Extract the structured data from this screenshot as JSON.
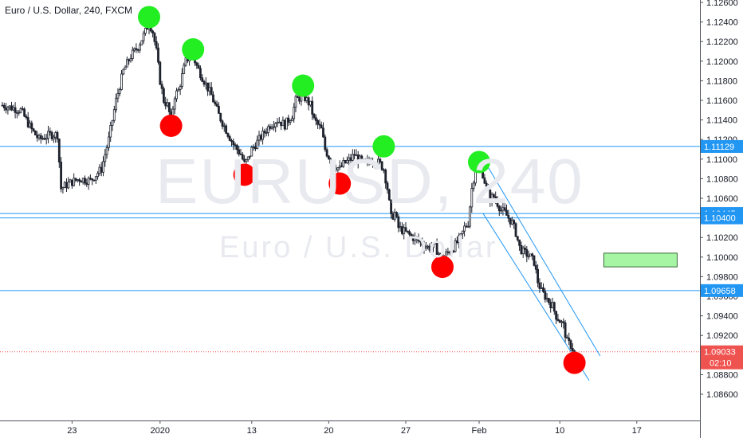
{
  "header": {
    "title": "Euro / U.S. Dollar, 240, FXCM"
  },
  "watermark": {
    "symbol": "EURUSD, 240",
    "description": "Euro / U.S. Dollar"
  },
  "colors": {
    "up": "#26a69a",
    "down": "#ef5350",
    "candle": "#1e222d",
    "line": "#2196f3",
    "support_label": "#2196f3",
    "last_price": "#ef5350",
    "green_marker": "#22ee22",
    "red_marker": "#ff0000",
    "box_fill": "#a5f5a5",
    "box_border": "#3a6a3a"
  },
  "chart_data": {
    "type": "candlestick",
    "title": "Euro / U.S. Dollar, 240, FXCM",
    "xlabel": "",
    "ylabel": "",
    "ylim": [
      1.0855,
      1.1275
    ],
    "y_ticks": [
      "1.12600",
      "1.12400",
      "1.12200",
      "1.12000",
      "1.11800",
      "1.11600",
      "1.11400",
      "1.11200",
      "1.11000",
      "1.10800",
      "1.10600",
      "1.10400",
      "1.10200",
      "1.10000",
      "1.09800",
      "1.09600",
      "1.09400",
      "1.09200",
      "1.09000",
      "1.08800",
      "1.08600"
    ],
    "x_ticks": [
      {
        "label": "23",
        "t": 19
      },
      {
        "label": "2020",
        "t": 43
      },
      {
        "label": "13",
        "t": 68
      },
      {
        "label": "20",
        "t": 89
      },
      {
        "label": "27",
        "t": 110
      },
      {
        "label": "Feb",
        "t": 130
      },
      {
        "label": "10",
        "t": 152
      },
      {
        "label": "17",
        "t": 173
      }
    ],
    "x_range": [
      0,
      202
    ],
    "horizontal_lines": [
      {
        "price": 1.11129,
        "label": "1.11129"
      },
      {
        "price": 1.10445,
        "label": "1.10445"
      },
      {
        "price": 1.104,
        "label": "1.10400"
      },
      {
        "price": 1.09658,
        "label": "1.09658"
      }
    ],
    "last_price": {
      "price": 1.09033,
      "label": "1.09033",
      "countdown": "02:10"
    },
    "channel": {
      "upper": [
        {
          "t": 131,
          "p": 1.1101
        },
        {
          "t": 163,
          "p": 1.0899
        }
      ],
      "lower": [
        {
          "t": 131,
          "p": 1.1045
        },
        {
          "t": 160,
          "p": 1.0874
        }
      ]
    },
    "target_box": {
      "t1": 164,
      "t2": 184,
      "p_top": 1.1004,
      "p_bottom": 1.099
    },
    "swing_highs": [
      {
        "t": 40,
        "p": 1.1245
      },
      {
        "t": 52,
        "p": 1.1212
      },
      {
        "t": 82,
        "p": 1.1175
      },
      {
        "t": 104,
        "p": 1.1113
      },
      {
        "t": 130,
        "p": 1.1097
      }
    ],
    "swing_lows": [
      {
        "t": 46,
        "p": 1.1134
      },
      {
        "t": 66,
        "p": 1.1084
      },
      {
        "t": 92,
        "p": 1.1075
      },
      {
        "t": 120,
        "p": 1.099
      },
      {
        "t": 156,
        "p": 1.0892
      }
    ],
    "close_path": [
      {
        "t": 0,
        "p": 1.1155
      },
      {
        "t": 3,
        "p": 1.1152
      },
      {
        "t": 5,
        "p": 1.115
      },
      {
        "t": 8,
        "p": 1.113
      },
      {
        "t": 10,
        "p": 1.112
      },
      {
        "t": 13,
        "p": 1.1125
      },
      {
        "t": 15,
        "p": 1.1125
      },
      {
        "t": 16,
        "p": 1.107
      },
      {
        "t": 18,
        "p": 1.1075
      },
      {
        "t": 21,
        "p": 1.108
      },
      {
        "t": 24,
        "p": 1.1078
      },
      {
        "t": 27,
        "p": 1.109
      },
      {
        "t": 29,
        "p": 1.112
      },
      {
        "t": 31,
        "p": 1.116
      },
      {
        "t": 33,
        "p": 1.119
      },
      {
        "t": 35,
        "p": 1.1205
      },
      {
        "t": 37,
        "p": 1.1215
      },
      {
        "t": 39,
        "p": 1.123
      },
      {
        "t": 40,
        "p": 1.124
      },
      {
        "t": 41,
        "p": 1.123
      },
      {
        "t": 42,
        "p": 1.121
      },
      {
        "t": 43,
        "p": 1.118
      },
      {
        "t": 44,
        "p": 1.116
      },
      {
        "t": 45,
        "p": 1.1155
      },
      {
        "t": 46,
        "p": 1.114
      },
      {
        "t": 47,
        "p": 1.1165
      },
      {
        "t": 48,
        "p": 1.117
      },
      {
        "t": 49,
        "p": 1.1185
      },
      {
        "t": 50,
        "p": 1.12
      },
      {
        "t": 51,
        "p": 1.1205
      },
      {
        "t": 52,
        "p": 1.1205
      },
      {
        "t": 53,
        "p": 1.1195
      },
      {
        "t": 55,
        "p": 1.118
      },
      {
        "t": 57,
        "p": 1.1165
      },
      {
        "t": 59,
        "p": 1.1145
      },
      {
        "t": 61,
        "p": 1.113
      },
      {
        "t": 63,
        "p": 1.1115
      },
      {
        "t": 65,
        "p": 1.1105
      },
      {
        "t": 66,
        "p": 1.1095
      },
      {
        "t": 67,
        "p": 1.11
      },
      {
        "t": 68,
        "p": 1.111
      },
      {
        "t": 69,
        "p": 1.1115
      },
      {
        "t": 71,
        "p": 1.1125
      },
      {
        "t": 73,
        "p": 1.1135
      },
      {
        "t": 75,
        "p": 1.114
      },
      {
        "t": 77,
        "p": 1.1135
      },
      {
        "t": 79,
        "p": 1.1145
      },
      {
        "t": 80,
        "p": 1.116
      },
      {
        "t": 82,
        "p": 1.1165
      },
      {
        "t": 84,
        "p": 1.1155
      },
      {
        "t": 85,
        "p": 1.114
      },
      {
        "t": 87,
        "p": 1.113
      },
      {
        "t": 88,
        "p": 1.111
      },
      {
        "t": 90,
        "p": 1.1095
      },
      {
        "t": 92,
        "p": 1.109
      },
      {
        "t": 93,
        "p": 1.1095
      },
      {
        "t": 95,
        "p": 1.11
      },
      {
        "t": 96,
        "p": 1.1105
      },
      {
        "t": 97,
        "p": 1.11
      },
      {
        "t": 99,
        "p": 1.1095
      },
      {
        "t": 101,
        "p": 1.11
      },
      {
        "t": 103,
        "p": 1.1095
      },
      {
        "t": 104,
        "p": 1.109
      },
      {
        "t": 105,
        "p": 1.107
      },
      {
        "t": 106,
        "p": 1.104
      },
      {
        "t": 107,
        "p": 1.1045
      },
      {
        "t": 108,
        "p": 1.103
      },
      {
        "t": 110,
        "p": 1.1025
      },
      {
        "t": 112,
        "p": 1.102
      },
      {
        "t": 114,
        "p": 1.1015
      },
      {
        "t": 116,
        "p": 1.101
      },
      {
        "t": 118,
        "p": 1.101
      },
      {
        "t": 120,
        "p": 1.0998
      },
      {
        "t": 121,
        "p": 1.1003
      },
      {
        "t": 123,
        "p": 1.101
      },
      {
        "t": 125,
        "p": 1.102
      },
      {
        "t": 126,
        "p": 1.103
      },
      {
        "t": 127,
        "p": 1.1035
      },
      {
        "t": 128,
        "p": 1.107
      },
      {
        "t": 129,
        "p": 1.109
      },
      {
        "t": 130,
        "p": 1.1092
      },
      {
        "t": 131,
        "p": 1.1085
      },
      {
        "t": 132,
        "p": 1.107
      },
      {
        "t": 133,
        "p": 1.106
      },
      {
        "t": 134,
        "p": 1.1062
      },
      {
        "t": 135,
        "p": 1.1055
      },
      {
        "t": 136,
        "p": 1.1048
      },
      {
        "t": 137,
        "p": 1.1045
      },
      {
        "t": 138,
        "p": 1.104
      },
      {
        "t": 139,
        "p": 1.1035
      },
      {
        "t": 140,
        "p": 1.1025
      },
      {
        "t": 141,
        "p": 1.101
      },
      {
        "t": 142,
        "p": 1.1005
      },
      {
        "t": 143,
        "p": 1.1003
      },
      {
        "t": 144,
        "p": 1.1
      },
      {
        "t": 145,
        "p": 1.0995
      },
      {
        "t": 146,
        "p": 1.0975
      },
      {
        "t": 147,
        "p": 1.0965
      },
      {
        "t": 148,
        "p": 1.096
      },
      {
        "t": 149,
        "p": 1.0955
      },
      {
        "t": 150,
        "p": 1.095
      },
      {
        "t": 151,
        "p": 1.094
      },
      {
        "t": 152,
        "p": 1.0935
      },
      {
        "t": 153,
        "p": 1.093
      },
      {
        "t": 154,
        "p": 1.0913
      },
      {
        "t": 155,
        "p": 1.091
      },
      {
        "t": 156,
        "p": 1.0903
      }
    ]
  }
}
